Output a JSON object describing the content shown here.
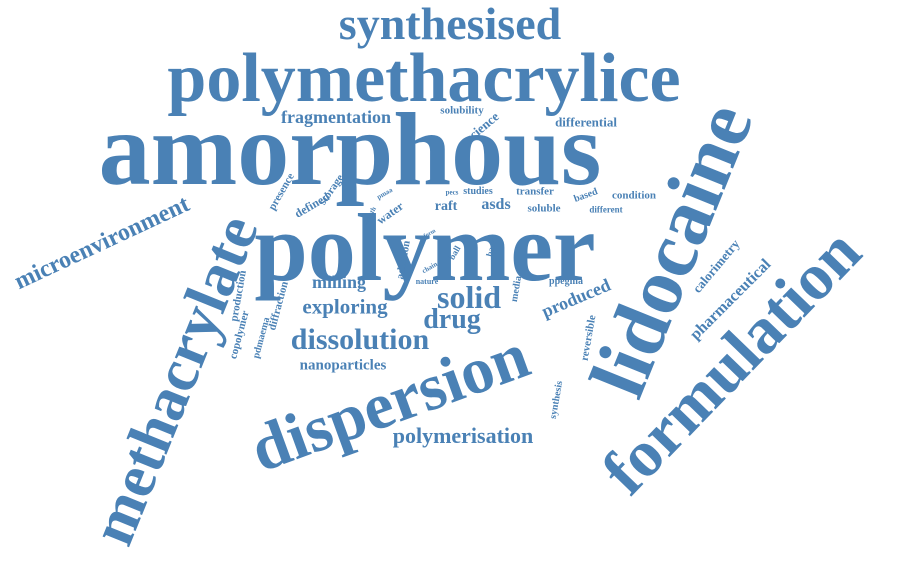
{
  "color": "#4a81b5",
  "words": [
    "synthesised",
    "polymethacrylice",
    "amorphous",
    "lidocaine",
    "polymer",
    "formulation",
    "dispersion",
    "methacrylate",
    "microenvironment",
    "fragmentation",
    "solubility",
    "science",
    "differential",
    "presence",
    "storage",
    "defined",
    "month",
    "pmaa",
    "water",
    "pecs",
    "studies",
    "transfer",
    "raft",
    "asds",
    "soluble",
    "based",
    "condition",
    "different",
    "form",
    "ball",
    "basic",
    "calorimetry",
    "production",
    "diffraction",
    "milling",
    "addition",
    "chain",
    "nature",
    "media",
    "ppegma",
    "produced",
    "pharmaceutical",
    "copolymer",
    "pdmaema",
    "exploring",
    "solid",
    "drug",
    "dissolution",
    "nanoparticles",
    "reversible",
    "synthesis",
    "polymerisation"
  ]
}
